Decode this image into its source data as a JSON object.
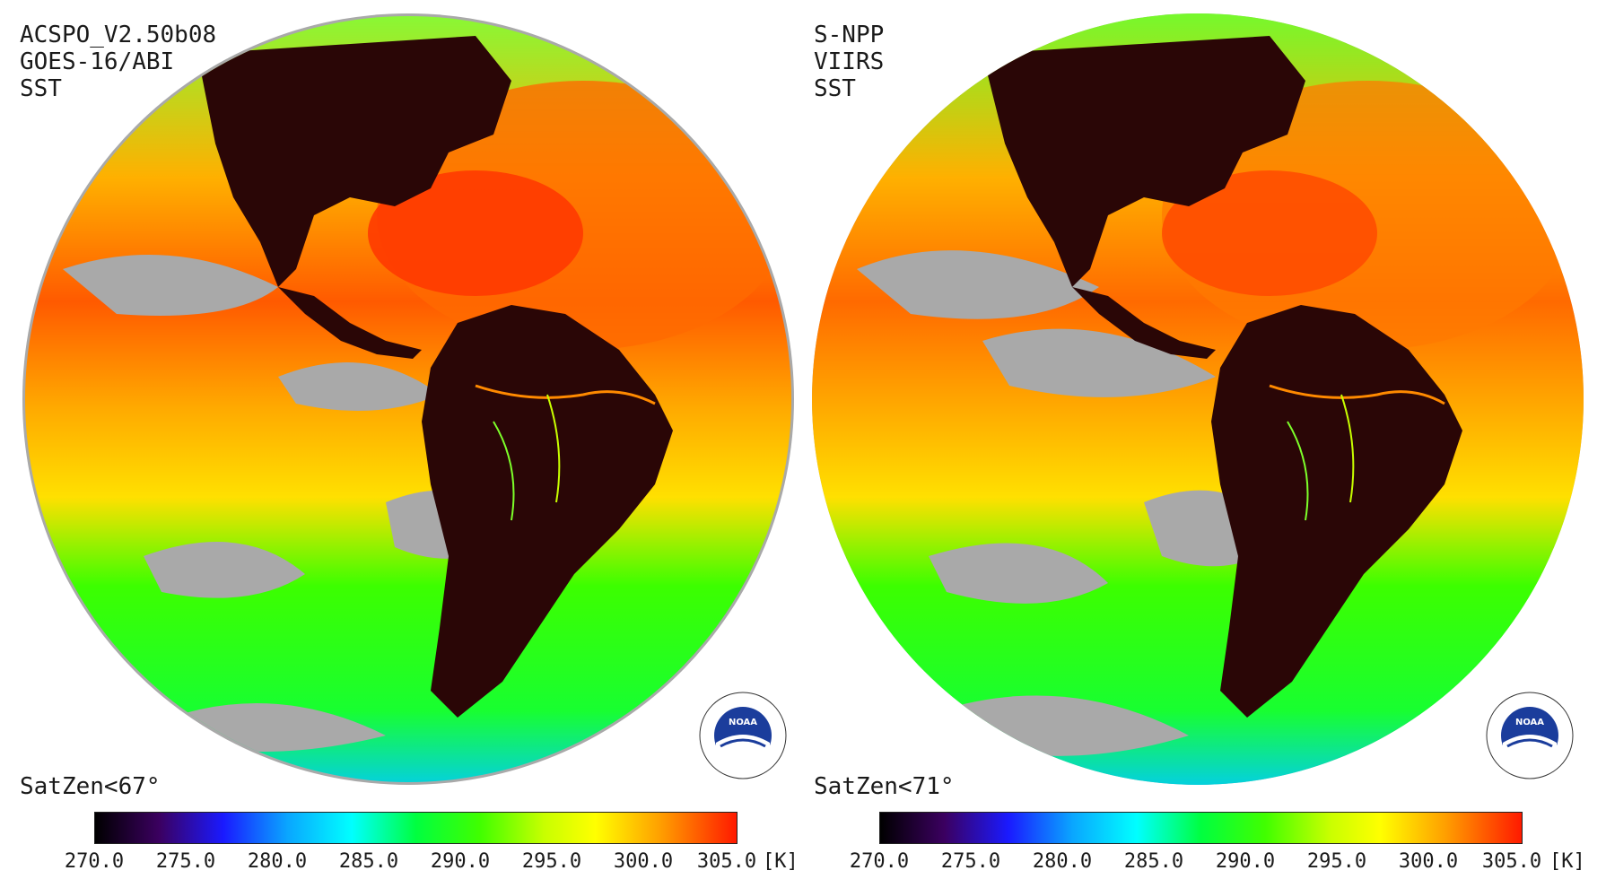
{
  "panels": [
    {
      "caption": [
        "ACSPO_V2.50b08",
        "GOES-16/ABI",
        "SST"
      ],
      "satzen": "SatZen<67°",
      "colorbar": {
        "ticks": [
          "270.0",
          "275.0",
          "280.0",
          "285.0",
          "290.0",
          "295.0",
          "300.0",
          "305.0"
        ],
        "unit": "[K]",
        "range": [
          270,
          305
        ]
      }
    },
    {
      "caption": [
        "S-NPP",
        "VIIRS",
        "SST"
      ],
      "satzen": "SatZen<71°",
      "colorbar": {
        "ticks": [
          "270.0",
          "275.0",
          "280.0",
          "285.0",
          "290.0",
          "295.0",
          "300.0",
          "305.0"
        ],
        "unit": "[K]",
        "range": [
          270,
          305
        ]
      }
    }
  ],
  "colors": {
    "no_data": "#a9a9a9",
    "land": "#2a0606",
    "colorbar_stops": [
      "#000000",
      "#4b0082",
      "#0000ff",
      "#00bfff",
      "#00ffff",
      "#00ff00",
      "#7fff00",
      "#ffff00",
      "#ffa500",
      "#ff4500",
      "#ff0000"
    ]
  },
  "logo": "noaa-logo"
}
